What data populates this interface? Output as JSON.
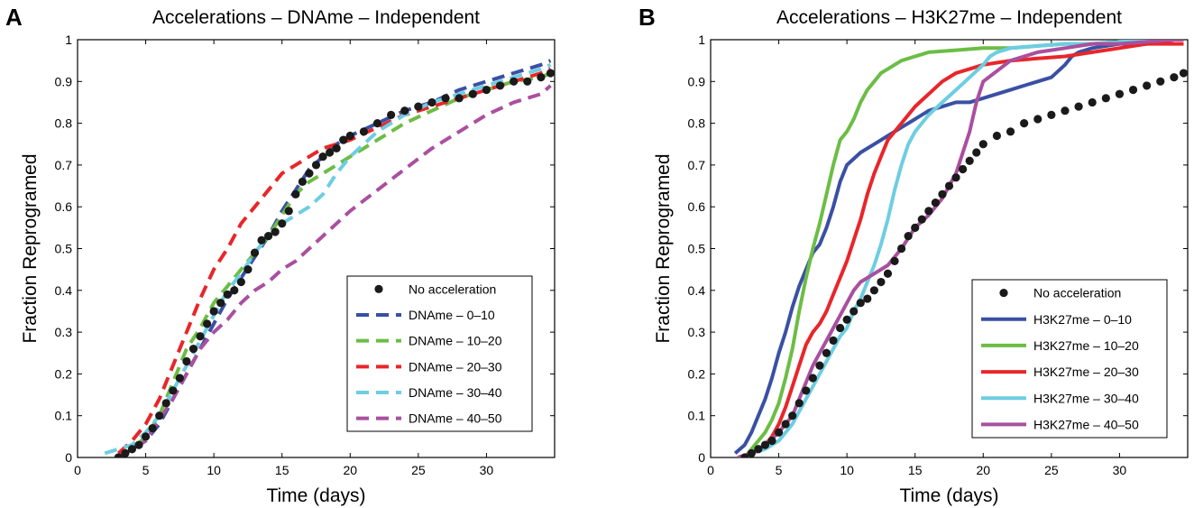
{
  "chart_data": [
    {
      "panel": "A",
      "type": "line",
      "title": "Accelerations – DNAme – Independent",
      "xlabel": "Time (days)",
      "ylabel": "Fraction Reprogramed",
      "xlim": [
        0,
        35
      ],
      "ylim": [
        0,
        1
      ],
      "xticks": [
        "0",
        "5",
        "10",
        "15",
        "20",
        "25",
        "30"
      ],
      "yticks": [
        "0",
        "0.1",
        "0.2",
        "0.3",
        "0.4",
        "0.5",
        "0.6",
        "0.7",
        "0.8",
        "0.9",
        "1"
      ],
      "legend_position": "lower-right",
      "series": [
        {
          "name": "No acceleration",
          "style": "dots",
          "color": "#1a1a1a",
          "x": [
            3.0,
            3.5,
            4,
            4.5,
            5,
            5.5,
            6,
            6.5,
            7,
            7.5,
            8,
            8.5,
            9,
            9.5,
            10,
            10.5,
            11,
            11.5,
            12,
            12.5,
            13,
            13.5,
            14,
            14.5,
            15,
            15.5,
            16,
            16.5,
            17,
            17.5,
            18,
            18.5,
            19,
            19.5,
            20,
            21,
            22,
            23,
            24,
            25,
            26,
            27,
            28,
            29,
            30,
            31,
            32,
            33,
            34,
            34.7
          ],
          "y": [
            0.0,
            0.01,
            0.02,
            0.03,
            0.05,
            0.07,
            0.1,
            0.13,
            0.16,
            0.19,
            0.23,
            0.26,
            0.29,
            0.32,
            0.35,
            0.37,
            0.39,
            0.4,
            0.42,
            0.45,
            0.49,
            0.52,
            0.53,
            0.54,
            0.56,
            0.59,
            0.63,
            0.66,
            0.68,
            0.7,
            0.72,
            0.73,
            0.74,
            0.76,
            0.77,
            0.78,
            0.8,
            0.82,
            0.83,
            0.84,
            0.85,
            0.86,
            0.86,
            0.87,
            0.88,
            0.89,
            0.9,
            0.9,
            0.91,
            0.92
          ]
        },
        {
          "name": "DNAme – 0–10",
          "style": "dashed",
          "color": "#3a50a4",
          "x": [
            3,
            4,
            5,
            6,
            7,
            8,
            9,
            10,
            11,
            12,
            13,
            14,
            15,
            16,
            17,
            18,
            19,
            20,
            22,
            24,
            26,
            28,
            30,
            32,
            34,
            34.7
          ],
          "y": [
            0.0,
            0.02,
            0.04,
            0.08,
            0.14,
            0.2,
            0.26,
            0.32,
            0.38,
            0.43,
            0.48,
            0.53,
            0.59,
            0.64,
            0.69,
            0.72,
            0.75,
            0.77,
            0.8,
            0.83,
            0.85,
            0.88,
            0.9,
            0.92,
            0.94,
            0.95
          ]
        },
        {
          "name": "DNAme – 10–20",
          "style": "dashed",
          "color": "#6cbd45",
          "x": [
            3,
            4,
            5,
            6,
            7,
            8,
            9,
            10,
            11,
            12,
            13,
            14,
            15,
            16,
            17,
            18,
            19,
            20,
            22,
            24,
            26,
            28,
            30,
            32,
            34,
            34.7
          ],
          "y": [
            0.0,
            0.02,
            0.05,
            0.1,
            0.18,
            0.26,
            0.31,
            0.37,
            0.41,
            0.45,
            0.49,
            0.53,
            0.58,
            0.63,
            0.66,
            0.68,
            0.7,
            0.72,
            0.76,
            0.8,
            0.83,
            0.86,
            0.88,
            0.9,
            0.91,
            0.92
          ]
        },
        {
          "name": "DNAme – 20–30",
          "style": "dashed",
          "color": "#e8262a",
          "x": [
            3,
            4,
            5,
            6,
            7,
            8,
            9,
            10,
            11,
            12,
            13,
            14,
            15,
            16,
            17,
            18,
            19,
            20,
            22,
            24,
            26,
            28,
            30,
            32,
            34,
            34.7
          ],
          "y": [
            0.01,
            0.04,
            0.08,
            0.14,
            0.22,
            0.3,
            0.38,
            0.45,
            0.5,
            0.56,
            0.6,
            0.64,
            0.68,
            0.7,
            0.72,
            0.74,
            0.75,
            0.76,
            0.79,
            0.82,
            0.84,
            0.86,
            0.88,
            0.9,
            0.92,
            0.93
          ]
        },
        {
          "name": "DNAme – 30–40",
          "style": "dashed",
          "color": "#6dcde2",
          "x": [
            2,
            3,
            4,
            5,
            6,
            7,
            8,
            9,
            10,
            11,
            12,
            13,
            14,
            15,
            16,
            17,
            18,
            19,
            20,
            22,
            24,
            26,
            28,
            30,
            32,
            34,
            34.7
          ],
          "y": [
            0.01,
            0.02,
            0.03,
            0.06,
            0.1,
            0.16,
            0.22,
            0.28,
            0.34,
            0.4,
            0.44,
            0.49,
            0.53,
            0.56,
            0.58,
            0.6,
            0.63,
            0.68,
            0.72,
            0.78,
            0.82,
            0.85,
            0.87,
            0.89,
            0.91,
            0.93,
            0.94
          ]
        },
        {
          "name": "DNAme – 40–50",
          "style": "dashed",
          "color": "#a9509f",
          "x": [
            3,
            4,
            5,
            6,
            7,
            8,
            9,
            10,
            11,
            12,
            13,
            14,
            15,
            16,
            17,
            18,
            19,
            20,
            22,
            24,
            26,
            28,
            30,
            32,
            34,
            34.7
          ],
          "y": [
            0.0,
            0.02,
            0.04,
            0.09,
            0.14,
            0.2,
            0.26,
            0.3,
            0.33,
            0.37,
            0.4,
            0.42,
            0.45,
            0.47,
            0.5,
            0.53,
            0.56,
            0.59,
            0.64,
            0.69,
            0.74,
            0.78,
            0.82,
            0.85,
            0.87,
            0.89
          ]
        }
      ]
    },
    {
      "panel": "B",
      "type": "line",
      "title": "Accelerations – H3K27me – Independent",
      "xlabel": "Time (days)",
      "ylabel": "Fraction Reprogramed",
      "xlim": [
        0,
        35
      ],
      "ylim": [
        0,
        1
      ],
      "xticks": [
        "0",
        "5",
        "10",
        "15",
        "20",
        "25",
        "30"
      ],
      "yticks": [
        "0",
        "0.1",
        "0.2",
        "0.3",
        "0.4",
        "0.5",
        "0.6",
        "0.7",
        "0.8",
        "0.9",
        "1"
      ],
      "legend_position": "lower-right",
      "series": [
        {
          "name": "No acceleration",
          "style": "dots",
          "color": "#1a1a1a",
          "x": [
            2.5,
            3,
            3.5,
            4,
            4.5,
            5,
            5.5,
            6,
            6.5,
            7,
            7.5,
            8,
            8.5,
            9,
            9.5,
            10,
            10.5,
            11,
            11.5,
            12,
            12.5,
            13,
            13.5,
            14,
            14.5,
            15,
            15.5,
            16,
            16.5,
            17,
            17.5,
            18,
            18.5,
            19,
            19.5,
            20,
            21,
            22,
            23,
            24,
            25,
            26,
            27,
            28,
            29,
            30,
            31,
            32,
            33,
            34,
            34.7
          ],
          "y": [
            0.0,
            0.01,
            0.02,
            0.03,
            0.04,
            0.06,
            0.08,
            0.1,
            0.13,
            0.16,
            0.19,
            0.22,
            0.25,
            0.28,
            0.31,
            0.33,
            0.35,
            0.37,
            0.38,
            0.4,
            0.42,
            0.44,
            0.47,
            0.5,
            0.53,
            0.55,
            0.57,
            0.59,
            0.61,
            0.63,
            0.65,
            0.67,
            0.69,
            0.71,
            0.73,
            0.75,
            0.77,
            0.78,
            0.8,
            0.81,
            0.82,
            0.83,
            0.84,
            0.85,
            0.86,
            0.87,
            0.88,
            0.89,
            0.9,
            0.91,
            0.92
          ]
        },
        {
          "name": "H3K27me – 0–10",
          "style": "solid",
          "color": "#3a50a4",
          "x": [
            1.8,
            2.5,
            3,
            3.5,
            4,
            4.5,
            5,
            5.5,
            6,
            6.5,
            7,
            7.5,
            8,
            8.5,
            9,
            9.5,
            10,
            11,
            12,
            13,
            14,
            15,
            16,
            17,
            18,
            19,
            20,
            21,
            22,
            23,
            24,
            25,
            26,
            26.5,
            27,
            28,
            30,
            32,
            34,
            34.7
          ],
          "y": [
            0.01,
            0.03,
            0.06,
            0.1,
            0.14,
            0.19,
            0.25,
            0.3,
            0.36,
            0.41,
            0.45,
            0.49,
            0.51,
            0.55,
            0.6,
            0.66,
            0.7,
            0.73,
            0.75,
            0.77,
            0.79,
            0.81,
            0.83,
            0.84,
            0.85,
            0.85,
            0.86,
            0.87,
            0.88,
            0.89,
            0.9,
            0.91,
            0.94,
            0.96,
            0.97,
            0.98,
            0.99,
            0.99,
            1.0,
            1.0
          ]
        },
        {
          "name": "H3K27me – 10–20",
          "style": "solid",
          "color": "#6cbd45",
          "x": [
            2.5,
            3,
            3.5,
            4,
            4.5,
            5,
            5.5,
            6,
            6.5,
            7,
            7.5,
            8,
            8.5,
            9,
            9.5,
            10,
            10.5,
            11,
            11.5,
            12,
            12.5,
            13,
            13.5,
            14,
            15,
            16,
            18,
            20,
            22,
            24,
            26,
            28,
            30,
            32,
            34,
            34.7
          ],
          "y": [
            0.0,
            0.02,
            0.04,
            0.06,
            0.09,
            0.13,
            0.19,
            0.26,
            0.35,
            0.43,
            0.5,
            0.56,
            0.63,
            0.7,
            0.76,
            0.78,
            0.81,
            0.85,
            0.88,
            0.9,
            0.92,
            0.93,
            0.94,
            0.95,
            0.96,
            0.97,
            0.975,
            0.98,
            0.98,
            0.985,
            0.99,
            0.99,
            0.995,
            1.0,
            1.0,
            1.0
          ]
        },
        {
          "name": "H3K27me – 20–30",
          "style": "solid",
          "color": "#e8262a",
          "x": [
            2,
            3,
            4,
            4.5,
            5,
            5.5,
            6,
            6.5,
            7,
            7.5,
            8,
            8.5,
            9,
            9.5,
            10,
            10.5,
            11,
            11.5,
            12,
            12.5,
            13,
            14,
            15,
            16,
            17,
            18,
            19,
            20,
            21,
            22,
            24,
            26,
            28,
            30,
            32,
            34,
            34.7
          ],
          "y": [
            0.0,
            0.01,
            0.03,
            0.05,
            0.08,
            0.12,
            0.17,
            0.22,
            0.27,
            0.3,
            0.32,
            0.35,
            0.39,
            0.43,
            0.47,
            0.52,
            0.57,
            0.63,
            0.68,
            0.72,
            0.76,
            0.8,
            0.84,
            0.87,
            0.9,
            0.92,
            0.93,
            0.94,
            0.945,
            0.95,
            0.955,
            0.96,
            0.97,
            0.98,
            0.99,
            0.99,
            0.99
          ]
        },
        {
          "name": "H3K27me – 30–40",
          "style": "solid",
          "color": "#6dcde2",
          "x": [
            2,
            3,
            4,
            5,
            6,
            6.5,
            7,
            7.5,
            8,
            8.5,
            9,
            9.5,
            10,
            10.5,
            11,
            11.5,
            12,
            12.5,
            13,
            13.5,
            14,
            14.5,
            15,
            16,
            17,
            18,
            19,
            20,
            20.5,
            21,
            22,
            24,
            26,
            28,
            30,
            32,
            34,
            34.7
          ],
          "y": [
            0.0,
            0.01,
            0.02,
            0.04,
            0.08,
            0.11,
            0.14,
            0.17,
            0.2,
            0.23,
            0.26,
            0.29,
            0.31,
            0.35,
            0.38,
            0.42,
            0.46,
            0.51,
            0.57,
            0.64,
            0.7,
            0.75,
            0.78,
            0.82,
            0.85,
            0.88,
            0.91,
            0.94,
            0.96,
            0.97,
            0.98,
            0.985,
            0.99,
            0.99,
            0.995,
            1.0,
            1.0,
            1.0
          ]
        },
        {
          "name": "H3K27me – 40–50",
          "style": "solid",
          "color": "#a9509f",
          "x": [
            2,
            3,
            4,
            5,
            6,
            6.5,
            7,
            7.5,
            8,
            8.5,
            9,
            9.5,
            10,
            10.5,
            11,
            11.5,
            12,
            13,
            14,
            15,
            16,
            17,
            18,
            19,
            19.5,
            20,
            22,
            24,
            26,
            28,
            30,
            32,
            34,
            34.7
          ],
          "y": [
            0.0,
            0.01,
            0.03,
            0.06,
            0.1,
            0.14,
            0.18,
            0.22,
            0.25,
            0.28,
            0.31,
            0.34,
            0.37,
            0.4,
            0.42,
            0.43,
            0.44,
            0.46,
            0.5,
            0.55,
            0.58,
            0.62,
            0.68,
            0.78,
            0.85,
            0.9,
            0.95,
            0.97,
            0.98,
            0.99,
            0.99,
            0.995,
            1.0,
            1.0
          ]
        }
      ]
    }
  ]
}
